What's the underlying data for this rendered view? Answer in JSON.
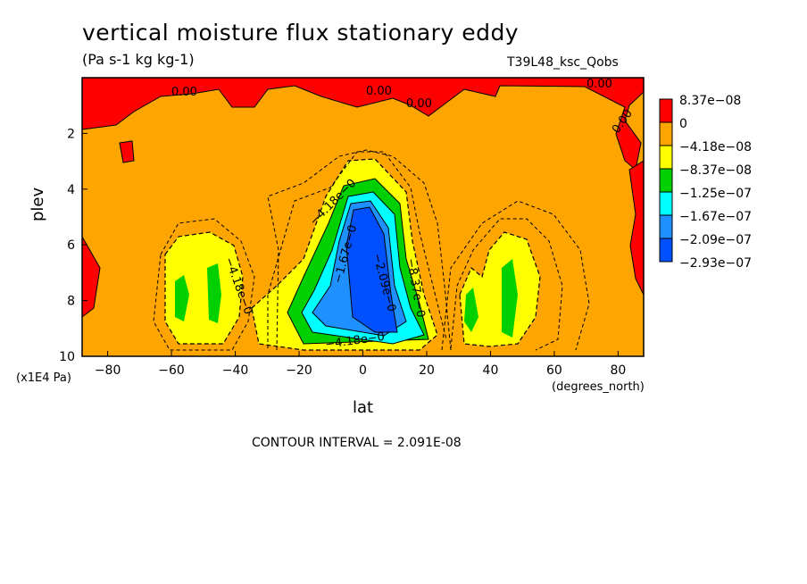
{
  "chart_data": {
    "type": "heatmap",
    "title": "vertical moisture flux stationary eddy",
    "units": "(Pa s-1 kg kg-1)",
    "run_name": "T39L48_ksc_Qobs",
    "xlabel": "lat",
    "ylabel": "plev",
    "x_unit": "(degrees_north)",
    "y_unit": "(x1E4 Pa)",
    "xlim": [
      -88,
      88
    ],
    "ylim": [
      10,
      0
    ],
    "x_ticks": [
      "-80",
      "-60",
      "-40",
      "-20",
      "0",
      "20",
      "40",
      "60",
      "80"
    ],
    "y_ticks": [
      "2",
      "4",
      "6",
      "8",
      "10"
    ],
    "contour_interval_text": "CONTOUR INTERVAL = 2.091E-08",
    "legend": [
      {
        "label": "8.37e-08",
        "color": "#ff0000"
      },
      {
        "label": "0",
        "color": "#ffa500"
      },
      {
        "label": "-4.18e-08",
        "color": "#ffff00"
      },
      {
        "label": "-8.37e-08",
        "color": "#00d000"
      },
      {
        "label": "-1.25e-07",
        "color": "#00ffff"
      },
      {
        "label": "-1.67e-07",
        "color": "#1e90ff"
      },
      {
        "label": "-2.09e-07",
        "color": "#0050ff"
      },
      {
        "label": "-2.93e-07",
        "color": ""
      }
    ],
    "contour_labels": [
      "0.00",
      "0.00",
      "0.00",
      "0.00",
      "0.00",
      "-4.18e-0",
      "-4.18e-0",
      "-4.18e-0",
      "-1.67e-0",
      "-2.09e-0",
      "-8.37e-0"
    ],
    "background_value_color": "#ffa500"
  }
}
